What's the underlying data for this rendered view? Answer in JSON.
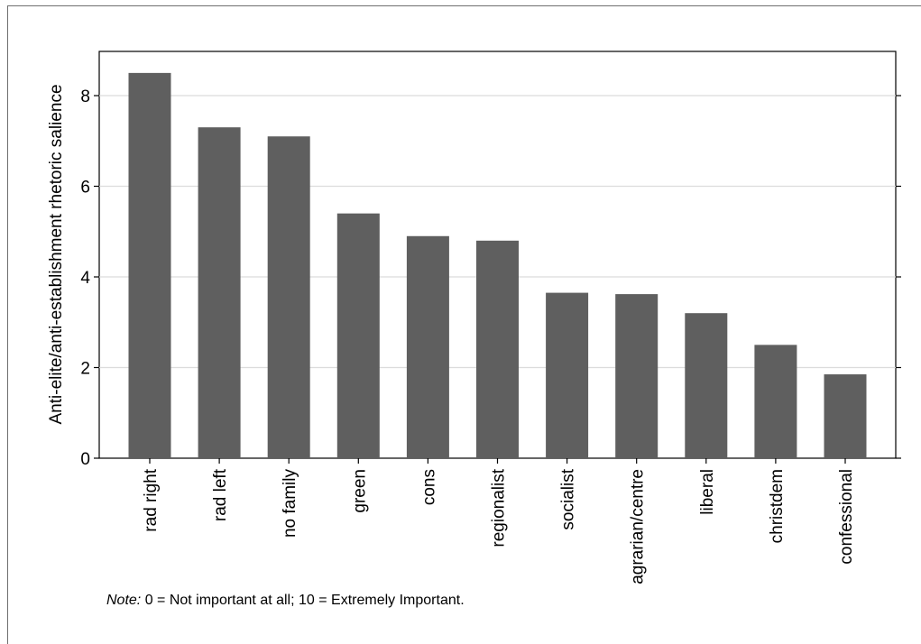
{
  "chart_data": {
    "type": "bar",
    "ylabel": "Anti-elite/anti-establishment rhetoric salience",
    "xlabel": "",
    "ylim": [
      0,
      8.5
    ],
    "yticks": [
      0,
      2,
      4,
      6,
      8
    ],
    "grid": true,
    "bar_color": "#5f5f5f",
    "categories": [
      "rad right",
      "rad left",
      "no family",
      "green",
      "cons",
      "regionalist",
      "socialist",
      "agrarian/centre",
      "liberal",
      "christdem",
      "confessional"
    ],
    "values": [
      8.5,
      7.3,
      7.1,
      5.4,
      4.9,
      4.8,
      3.65,
      3.62,
      3.2,
      2.5,
      1.85
    ]
  },
  "note": {
    "prefix": "Note:",
    "text": " 0 = Not important at all; 10 = Extremely Important."
  }
}
